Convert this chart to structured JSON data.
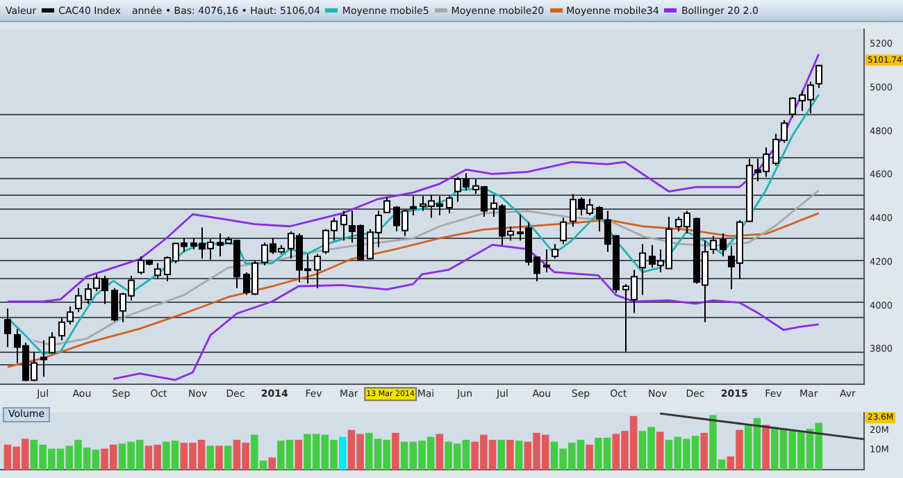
{
  "chart_data": [
    {
      "type": "candlestick",
      "title": "Valeur",
      "subtitle": "année • Bas: 4076,16 • Haut: 5106,04",
      "legend": "top left",
      "x": [
        "2013-06-03",
        "2013-06-10",
        "2013-06-17",
        "2013-06-24",
        "2013-07-01",
        "2013-07-08",
        "2013-07-15",
        "2013-07-22",
        "2013-07-29",
        "2013-08-05",
        "2013-08-12",
        "2013-08-19",
        "2013-08-26",
        "2013-09-02",
        "2013-09-09",
        "2013-09-16",
        "2013-09-23",
        "2013-09-30",
        "2013-10-07",
        "2013-10-14",
        "2013-10-21",
        "2013-10-28",
        "2013-11-04",
        "2013-11-11",
        "2013-11-18",
        "2013-11-25",
        "2013-12-02",
        "2013-12-09",
        "2013-12-16",
        "2013-12-23",
        "2013-12-30",
        "2014-01-06",
        "2014-01-13",
        "2014-01-20",
        "2014-01-27",
        "2014-02-03",
        "2014-02-10",
        "2014-02-17",
        "2014-02-24",
        "2014-03-03",
        "2014-03-10",
        "2014-03-17",
        "2014-03-24",
        "2014-03-31",
        "2014-04-07",
        "2014-04-14",
        "2014-04-21",
        "2014-04-28",
        "2014-05-05",
        "2014-05-12",
        "2014-05-19",
        "2014-05-26",
        "2014-06-02",
        "2014-06-09",
        "2014-06-16",
        "2014-06-23",
        "2014-06-30",
        "2014-07-07",
        "2014-07-14",
        "2014-07-21",
        "2014-07-28",
        "2014-08-04",
        "2014-08-11",
        "2014-08-18",
        "2014-08-25",
        "2014-09-01",
        "2014-09-08",
        "2014-09-15",
        "2014-09-22",
        "2014-09-29",
        "2014-10-06",
        "2014-10-13",
        "2014-10-20",
        "2014-10-27",
        "2014-11-03",
        "2014-11-10",
        "2014-11-17",
        "2014-11-24",
        "2014-12-01",
        "2014-12-08",
        "2014-12-15",
        "2014-12-22",
        "2014-12-29",
        "2015-01-05",
        "2015-01-12",
        "2015-01-19",
        "2015-01-26",
        "2015-02-02",
        "2015-02-09",
        "2015-02-16",
        "2015-02-23",
        "2015-03-02",
        "2015-03-09"
      ],
      "series": [
        {
          "name": "CAC40 Index",
          "type": "candlestick",
          "color": "#000000",
          "colors": [
            "#000000",
            "#000000",
            "#000000",
            "#ffffff",
            "#000000",
            "#ffffff",
            "#ffffff",
            "#ffffff",
            "#ffffff",
            "#ffffff",
            "#ffffff",
            "#000000",
            "#000000",
            "#ffffff",
            "#ffffff",
            "#ffffff",
            "#000000",
            "#ffffff",
            "#ffffff",
            "#ffffff",
            "#000000",
            "#000000",
            "#000000",
            "#ffffff",
            "#000000",
            "#ffffff",
            "#000000",
            "#000000",
            "#ffffff",
            "#ffffff",
            "#000000",
            "#ffffff",
            "#ffffff",
            "#000000",
            "#000000",
            "#ffffff",
            "#ffffff",
            "#ffffff",
            "#ffffff",
            "#000000",
            "#000000",
            "#ffffff",
            "#ffffff",
            "#ffffff",
            "#000000",
            "#ffffff",
            "#000000",
            "#ffffff",
            "#ffffff",
            "#000000",
            "#ffffff",
            "#ffffff",
            "#000000",
            "#ffffff",
            "#000000",
            "#ffffff",
            "#000000",
            "#ffffff",
            "#000000",
            "#000000",
            "#000000",
            "#000000",
            "#ffffff",
            "#ffffff",
            "#ffffff",
            "#000000",
            "#ffffff",
            "#000000",
            "#000000",
            "#000000",
            "#ffffff",
            "#ffffff",
            "#ffffff",
            "#000000",
            "#ffffff",
            "#ffffff",
            "#ffffff",
            "#ffffff",
            "#000000",
            "#ffffff",
            "#ffffff",
            "#000000",
            "#000000",
            "#ffffff",
            "#ffffff",
            "#000000",
            "#ffffff",
            "#ffffff",
            "#ffffff",
            "#ffffff",
            "#ffffff",
            "#ffffff",
            "#ffffff"
          ],
          "ohlc": [
            [
              3936,
              3988,
              3811,
              3873
            ],
            [
              3867,
              3894,
              3738,
              3811
            ],
            [
              3817,
              3832,
              3655,
              3659
            ],
            [
              3659,
              3790,
              3655,
              3738
            ],
            [
              3763,
              3842,
              3675,
              3754
            ],
            [
              3786,
              3879,
              3780,
              3856
            ],
            [
              3863,
              3946,
              3842,
              3925
            ],
            [
              3929,
              3998,
              3915,
              3971
            ],
            [
              3988,
              4081,
              3971,
              4046
            ],
            [
              4029,
              4102,
              4009,
              4077
            ],
            [
              4081,
              4144,
              4067,
              4127
            ],
            [
              4123,
              4138,
              4009,
              4071
            ],
            [
              4071,
              4081,
              3929,
              3936
            ],
            [
              3977,
              4060,
              3925,
              4054
            ],
            [
              4046,
              4138,
              4025,
              4117
            ],
            [
              4154,
              4227,
              4144,
              4209
            ],
            [
              4209,
              4213,
              4186,
              4192
            ],
            [
              4140,
              4196,
              4123,
              4169
            ],
            [
              4144,
              4227,
              4113,
              4221
            ],
            [
              4206,
              4290,
              4196,
              4286
            ],
            [
              4288,
              4311,
              4248,
              4273
            ],
            [
              4288,
              4311,
              4259,
              4275
            ],
            [
              4286,
              4359,
              4217,
              4261
            ],
            [
              4263,
              4306,
              4213,
              4292
            ],
            [
              4290,
              4332,
              4227,
              4279
            ],
            [
              4288,
              4317,
              4284,
              4304
            ],
            [
              4300,
              4304,
              4081,
              4134
            ],
            [
              4144,
              4154,
              4050,
              4061
            ],
            [
              4054,
              4207,
              4050,
              4196
            ],
            [
              4200,
              4290,
              4186,
              4279
            ],
            [
              4284,
              4311,
              4238,
              4248
            ],
            [
              4248,
              4279,
              4238,
              4263
            ],
            [
              4263,
              4342,
              4217,
              4332
            ],
            [
              4321,
              4332,
              4109,
              4165
            ],
            [
              4169,
              4238,
              4102,
              4165
            ],
            [
              4165,
              4238,
              4081,
              4227
            ],
            [
              4248,
              4352,
              4238,
              4346
            ],
            [
              4346,
              4404,
              4300,
              4388
            ],
            [
              4373,
              4436,
              4300,
              4415
            ],
            [
              4367,
              4436,
              4290,
              4342
            ],
            [
              4367,
              4373,
              4207,
              4213
            ],
            [
              4217,
              4352,
              4213,
              4338
            ],
            [
              4336,
              4436,
              4269,
              4415
            ],
            [
              4429,
              4498,
              4425,
              4481
            ],
            [
              4452,
              4457,
              4342,
              4369
            ],
            [
              4346,
              4442,
              4321,
              4436
            ],
            [
              4454,
              4504,
              4415,
              4446
            ],
            [
              4457,
              4504,
              4436,
              4467
            ],
            [
              4457,
              4509,
              4404,
              4481
            ],
            [
              4467,
              4504,
              4415,
              4457
            ],
            [
              4450,
              4504,
              4425,
              4494
            ],
            [
              4525,
              4592,
              4477,
              4581
            ],
            [
              4581,
              4609,
              4529,
              4546
            ],
            [
              4534,
              4581,
              4513,
              4550
            ],
            [
              4546,
              4550,
              4409,
              4436
            ],
            [
              4446,
              4509,
              4409,
              4471
            ],
            [
              4457,
              4467,
              4279,
              4321
            ],
            [
              4325,
              4363,
              4300,
              4342
            ],
            [
              4338,
              4421,
              4300,
              4332
            ],
            [
              4357,
              4384,
              4186,
              4202
            ],
            [
              4223,
              4227,
              4113,
              4150
            ],
            [
              4186,
              4259,
              4154,
              4180
            ],
            [
              4227,
              4284,
              4217,
              4259
            ],
            [
              4300,
              4404,
              4284,
              4384
            ],
            [
              4388,
              4513,
              4363,
              4488
            ],
            [
              4488,
              4498,
              4415,
              4446
            ],
            [
              4425,
              4492,
              4415,
              4463
            ],
            [
              4450,
              4457,
              4342,
              4400
            ],
            [
              4394,
              4436,
              4248,
              4284
            ],
            [
              4321,
              4325,
              4060,
              4075
            ],
            [
              4075,
              4100,
              3790,
              4090
            ],
            [
              4029,
              4165,
              3967,
              4134
            ],
            [
              4175,
              4284,
              4050,
              4242
            ],
            [
              4227,
              4279,
              4175,
              4192
            ],
            [
              4186,
              4259,
              4154,
              4206
            ],
            [
              4171,
              4409,
              4171,
              4352
            ],
            [
              4363,
              4409,
              4342,
              4396
            ],
            [
              4363,
              4436,
              4332,
              4425
            ],
            [
              4400,
              4404,
              4102,
              4109
            ],
            [
              4096,
              4300,
              3925,
              4248
            ],
            [
              4259,
              4321,
              4238,
              4300
            ],
            [
              4304,
              4332,
              4227,
              4259
            ],
            [
              4227,
              4275,
              4076.16,
              4180
            ],
            [
              4196,
              4394,
              4123,
              4384
            ],
            [
              4388,
              4675,
              4384,
              4644
            ],
            [
              4623,
              4675,
              4571,
              4613
            ],
            [
              4617,
              4727,
              4592,
              4696
            ],
            [
              4654,
              4790,
              4644,
              4763
            ],
            [
              4759,
              4852,
              4748,
              4838
            ],
            [
              4879,
              4957,
              4863,
              4952
            ],
            [
              4942,
              4988,
              4894,
              4967
            ],
            [
              4946,
              5029,
              4884,
              5013
            ],
            [
              5019,
              5106.04,
              5000,
              5101.74
            ]
          ]
        },
        {
          "name": "Moyenne mobile5",
          "type": "line",
          "color": "#1fb3b3",
          "x": [
            "2013-06-03",
            "2013-06-17",
            "2013-07-01",
            "2013-07-15",
            "2013-07-29",
            "2013-08-12",
            "2013-08-26",
            "2013-09-09",
            "2013-09-30",
            "2013-10-21",
            "2013-11-04",
            "2013-12-02",
            "2013-12-09",
            "2013-12-30",
            "2014-01-13",
            "2014-01-27",
            "2014-02-10",
            "2014-03-03",
            "2014-03-24",
            "2014-04-07",
            "2014-04-28",
            "2014-05-19",
            "2014-05-26",
            "2014-06-16",
            "2014-06-30",
            "2014-07-21",
            "2014-08-11",
            "2014-08-25",
            "2014-09-15",
            "2014-09-29",
            "2014-10-20",
            "2014-11-03",
            "2014-11-24",
            "2014-12-08",
            "2014-12-22",
            "2015-01-05",
            "2015-01-26",
            "2015-02-16",
            "2015-03-09"
          ],
          "values": [
            3945,
            3865,
            3780,
            3790,
            3925,
            4050,
            4115,
            4060,
            4145,
            4250,
            4285,
            4285,
            4195,
            4195,
            4260,
            4240,
            4280,
            4320,
            4340,
            4425,
            4445,
            4490,
            4530,
            4540,
            4500,
            4385,
            4240,
            4300,
            4425,
            4300,
            4155,
            4175,
            4340,
            4300,
            4240,
            4340,
            4530,
            4780,
            4970
          ]
        },
        {
          "name": "Moyenne mobile20",
          "type": "line",
          "color": "#a8a8a8",
          "x": [
            "2013-06-24",
            "2013-07-08",
            "2013-08-05",
            "2013-09-02",
            "2013-10-21",
            "2013-11-25",
            "2013-12-30",
            "2014-02-03",
            "2014-03-10",
            "2014-04-21",
            "2014-05-12",
            "2014-06-16",
            "2014-07-21",
            "2014-08-25",
            "2014-09-22",
            "2014-10-20",
            "2014-11-17",
            "2014-12-15",
            "2015-01-12",
            "2015-02-02",
            "2015-03-09"
          ],
          "values": [
            3840,
            3820,
            3850,
            3945,
            4050,
            4175,
            4205,
            4250,
            4280,
            4310,
            4365,
            4425,
            4435,
            4405,
            4395,
            4320,
            4285,
            4275,
            4290,
            4365,
            4530
          ]
        },
        {
          "name": "Moyenne mobile34",
          "type": "line",
          "color": "#d2601e",
          "x": [
            "2013-06-03",
            "2013-07-01",
            "2013-08-05",
            "2013-09-16",
            "2013-10-21",
            "2013-11-25",
            "2013-12-30",
            "2014-02-03",
            "2014-03-03",
            "2014-04-07",
            "2014-05-12",
            "2014-06-16",
            "2014-07-21",
            "2014-08-25",
            "2014-09-22",
            "2014-10-20",
            "2014-11-24",
            "2014-12-29",
            "2015-01-26",
            "2015-03-09"
          ],
          "values": [
            3720,
            3760,
            3830,
            3895,
            3965,
            4040,
            4090,
            4145,
            4215,
            4260,
            4310,
            4350,
            4365,
            4380,
            4395,
            4365,
            4350,
            4320,
            4330,
            4425
          ]
        },
        {
          "name": "Bollinger 20 2.0",
          "type": "line",
          "color": "#8a2be2",
          "x": [
            "2013-06-03",
            "2013-07-01",
            "2013-07-15",
            "2013-08-05",
            "2013-08-26",
            "2013-09-16",
            "2013-10-07",
            "2013-10-28",
            "2013-11-25",
            "2013-12-16",
            "2014-01-13",
            "2014-02-03",
            "2014-02-24",
            "2014-03-24",
            "2014-04-21",
            "2014-05-12",
            "2014-06-02",
            "2014-06-23",
            "2014-07-21",
            "2014-08-25",
            "2014-09-22",
            "2014-10-06",
            "2014-11-10",
            "2014-12-01",
            "2015-01-05",
            "2015-01-19",
            "2015-02-09",
            "2015-03-09"
          ],
          "values": [
            4020,
            4020,
            4030,
            4135,
            4175,
            4215,
            4310,
            4420,
            4395,
            4375,
            4365,
            4395,
            4425,
            4490,
            4520,
            4560,
            4625,
            4605,
            4615,
            4660,
            4650,
            4660,
            4525,
            4545,
            4545,
            4615,
            4780,
            5155
          ]
        },
        {
          "type": "line",
          "color": "#8a2be2",
          "x": [
            "2013-08-26",
            "2013-09-16",
            "2013-10-14",
            "2013-10-28",
            "2013-11-11",
            "2013-12-02",
            "2013-12-30",
            "2014-01-20",
            "2014-02-24",
            "2014-03-31",
            "2014-04-21",
            "2014-04-28",
            "2014-05-19",
            "2014-06-23",
            "2014-07-21",
            "2014-08-11",
            "2014-09-15",
            "2014-09-29",
            "2014-10-13",
            "2014-11-10",
            "2014-12-01",
            "2014-12-15",
            "2015-01-05",
            "2015-01-19",
            "2015-02-09",
            "2015-02-23",
            "2015-03-09"
          ],
          "values": [
            3665,
            3690,
            3660,
            3695,
            3865,
            3965,
            4020,
            4090,
            4095,
            4075,
            4100,
            4145,
            4165,
            4280,
            4260,
            4155,
            4140,
            4050,
            4020,
            4025,
            4010,
            4025,
            4015,
            3970,
            3890,
            3905,
            3915
          ]
        }
      ],
      "xlim": [
        "2013-05-28",
        "2015-04-14"
      ],
      "ylim": [
        3640,
        5270
      ],
      "xticks": [
        {
          "value": "2013-07-01",
          "label": "Jul"
        },
        {
          "value": "2013-08-01",
          "label": "Aou"
        },
        {
          "value": "2013-09-01",
          "label": "Sep"
        },
        {
          "value": "2013-10-01",
          "label": "Oct"
        },
        {
          "value": "2013-11-01",
          "label": "Nov"
        },
        {
          "value": "2013-12-01",
          "label": "Dec"
        },
        {
          "value": "2014-01-01",
          "label": "2014"
        },
        {
          "value": "2014-02-01",
          "label": "Fev"
        },
        {
          "value": "2014-03-01",
          "label": "Mar"
        },
        {
          "value": "2014-05-01",
          "label": "Mai"
        },
        {
          "value": "2014-06-01",
          "label": "Jun"
        },
        {
          "value": "2014-07-01",
          "label": "Jul"
        },
        {
          "value": "2014-08-01",
          "label": "Aou"
        },
        {
          "value": "2014-09-01",
          "label": "Sep"
        },
        {
          "value": "2014-10-01",
          "label": "Oct"
        },
        {
          "value": "2014-11-01",
          "label": "Nov"
        },
        {
          "value": "2014-12-01",
          "label": "Dec"
        },
        {
          "value": "2015-01-01",
          "label": "2015"
        },
        {
          "value": "2015-02-01",
          "label": "Fev"
        },
        {
          "value": "2015-03-01",
          "label": "Mar"
        },
        {
          "value": "2015-04-01",
          "label": "Avr"
        }
      ],
      "yticks": [
        3800,
        4000,
        4200,
        4400,
        4600,
        4800,
        5000,
        5200
      ],
      "ref_lines": [
        {
          "axis": "y",
          "value": 4880
        },
        {
          "axis": "y",
          "value": 4680
        },
        {
          "axis": "y",
          "value": 4590
        },
        {
          "axis": "y",
          "value": 4510
        },
        {
          "axis": "y",
          "value": 4450
        },
        {
          "axis": "y",
          "value": 4315
        },
        {
          "axis": "y",
          "value": 4210
        },
        {
          "axis": "y",
          "value": 4130
        },
        {
          "axis": "y",
          "value": 4020
        },
        {
          "axis": "y",
          "value": 3950
        },
        {
          "axis": "y",
          "value": 3790
        },
        {
          "axis": "y",
          "value": 3735
        }
      ],
      "annotations": [
        "13 Mar 2014",
        "5101.74"
      ]
    },
    {
      "type": "bar",
      "title": "Volume",
      "x": [
        "2013-06-03",
        "2013-06-10",
        "2013-06-17",
        "2013-06-24",
        "2013-07-01",
        "2013-07-08",
        "2013-07-15",
        "2013-07-22",
        "2013-07-29",
        "2013-08-05",
        "2013-08-12",
        "2013-08-19",
        "2013-08-26",
        "2013-09-02",
        "2013-09-09",
        "2013-09-16",
        "2013-09-23",
        "2013-09-30",
        "2013-10-07",
        "2013-10-14",
        "2013-10-21",
        "2013-10-28",
        "2013-11-04",
        "2013-11-11",
        "2013-11-18",
        "2013-11-25",
        "2013-12-02",
        "2013-12-09",
        "2013-12-16",
        "2013-12-23",
        "2013-12-30",
        "2014-01-06",
        "2014-01-13",
        "2014-01-20",
        "2014-01-27",
        "2014-02-03",
        "2014-02-10",
        "2014-02-17",
        "2014-02-24",
        "2014-03-03",
        "2014-03-10",
        "2014-03-17",
        "2014-03-24",
        "2014-03-31",
        "2014-04-07",
        "2014-04-14",
        "2014-04-21",
        "2014-04-28",
        "2014-05-05",
        "2014-05-12",
        "2014-05-19",
        "2014-05-26",
        "2014-06-02",
        "2014-06-09",
        "2014-06-16",
        "2014-06-23",
        "2014-06-30",
        "2014-07-07",
        "2014-07-14",
        "2014-07-21",
        "2014-07-28",
        "2014-08-04",
        "2014-08-11",
        "2014-08-18",
        "2014-08-25",
        "2014-09-01",
        "2014-09-08",
        "2014-09-15",
        "2014-09-22",
        "2014-09-29",
        "2014-10-06",
        "2014-10-13",
        "2014-10-20",
        "2014-10-27",
        "2014-11-03",
        "2014-11-10",
        "2014-11-17",
        "2014-11-24",
        "2014-12-01",
        "2014-12-08",
        "2014-12-15",
        "2014-12-22",
        "2014-12-29",
        "2015-01-05",
        "2015-01-12",
        "2015-01-19",
        "2015-01-26",
        "2015-02-02",
        "2015-02-09",
        "2015-02-16",
        "2015-02-23",
        "2015-03-02",
        "2015-03-09"
      ],
      "series": [
        {
          "type": "bar",
          "values": [
            12.5,
            11.5,
            15.5,
            15,
            12.5,
            10.5,
            10.5,
            12,
            15,
            11,
            10,
            10.5,
            12.5,
            13,
            14,
            15,
            12,
            12.5,
            14,
            14.5,
            13.5,
            13.5,
            15,
            12,
            12,
            12,
            15,
            13.5,
            17.5,
            4.5,
            6,
            14.5,
            15,
            15,
            18,
            18,
            17.5,
            15,
            16.5,
            20,
            18,
            18.5,
            15.5,
            15,
            18.5,
            14,
            14,
            14.5,
            16.5,
            18,
            14,
            13,
            15,
            14,
            17.5,
            15,
            15,
            15,
            14.5,
            14,
            18.5,
            17.5,
            14,
            10.5,
            13.5,
            15,
            12.5,
            16,
            16,
            18,
            19.5,
            27,
            19.5,
            21.5,
            19,
            15,
            16.5,
            15.5,
            17,
            18.5,
            27.5,
            5,
            6.5,
            20,
            23,
            26,
            22.5,
            21.5,
            20.5,
            19.5,
            19.5,
            20.5,
            23.6
          ],
          "colors": [
            "#e05a5a",
            "#e05a5a",
            "#e05a5a",
            "#44cc44",
            "#44cc44",
            "#44cc44",
            "#44cc44",
            "#44cc44",
            "#44cc44",
            "#44cc44",
            "#44cc44",
            "#e05a5a",
            "#e05a5a",
            "#44cc44",
            "#44cc44",
            "#44cc44",
            "#e05a5a",
            "#e05a5a",
            "#44cc44",
            "#44cc44",
            "#e05a5a",
            "#e05a5a",
            "#e05a5a",
            "#44cc44",
            "#e05a5a",
            "#44cc44",
            "#e05a5a",
            "#e05a5a",
            "#44cc44",
            "#44cc44",
            "#e05a5a",
            "#44cc44",
            "#44cc44",
            "#e05a5a",
            "#44cc44",
            "#44cc44",
            "#44cc44",
            "#44cc44",
            "#00e8f0",
            "#e05a5a",
            "#e05a5a",
            "#44cc44",
            "#44cc44",
            "#44cc44",
            "#e05a5a",
            "#44cc44",
            "#44cc44",
            "#44cc44",
            "#44cc44",
            "#e05a5a",
            "#44cc44",
            "#44cc44",
            "#44cc44",
            "#e05a5a",
            "#e05a5a",
            "#e05a5a",
            "#44cc44",
            "#e05a5a",
            "#44cc44",
            "#e05a5a",
            "#e05a5a",
            "#e05a5a",
            "#44cc44",
            "#44cc44",
            "#44cc44",
            "#44cc44",
            "#e05a5a",
            "#44cc44",
            "#44cc44",
            "#e05a5a",
            "#e05a5a",
            "#e05a5a",
            "#44cc44",
            "#44cc44",
            "#e05a5a",
            "#44cc44",
            "#44cc44",
            "#44cc44",
            "#44cc44",
            "#e05a5a",
            "#44cc44",
            "#44cc44",
            "#e05a5a",
            "#e05a5a",
            "#44cc44",
            "#44cc44",
            "#e05a5a",
            "#44cc44",
            "#44cc44",
            "#44cc44",
            "#44cc44",
            "#44cc44",
            "#44cc44"
          ]
        },
        {
          "type": "line",
          "color": "#333333",
          "x": [
            "2014-11-03",
            "2015-04-14"
          ],
          "values": [
            28.5,
            15.5
          ]
        }
      ],
      "xlim": [
        "2013-05-28",
        "2015-04-14"
      ],
      "ylim": [
        0,
        29
      ],
      "yticks": [
        {
          "value": 10,
          "label": "10M"
        },
        {
          "value": 20,
          "label": "20M"
        }
      ],
      "tick_labels": "y",
      "annotations": [
        "23.6M"
      ]
    }
  ]
}
